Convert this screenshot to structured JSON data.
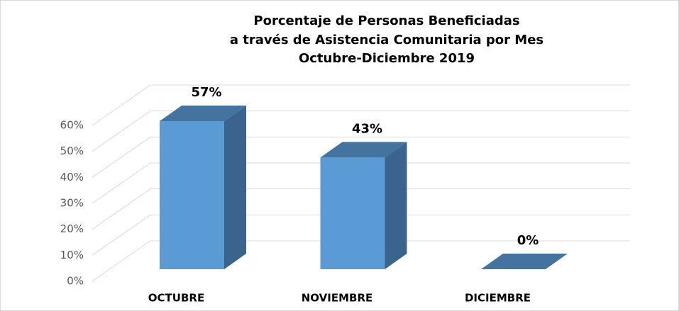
{
  "chart_data": {
    "type": "bar3d",
    "title": [
      "Porcentaje de Personas Beneficiadas",
      "a través de Asistencia Comunitaria por Mes",
      "Octubre-Diciembre  2019"
    ],
    "categories": [
      "OCTUBRE",
      "NOVIEMBRE",
      "DICIEMBRE"
    ],
    "values": [
      57,
      43,
      0
    ],
    "value_labels": [
      "57%",
      "43%",
      "0%"
    ],
    "color": "#5b9bd5",
    "ylim": [
      0,
      60
    ],
    "yticks": [
      {
        "value": 0,
        "label": "0%"
      },
      {
        "value": 10,
        "label": "10%"
      },
      {
        "value": 20,
        "label": "20%"
      },
      {
        "value": 30,
        "label": "30%"
      },
      {
        "value": 40,
        "label": "40%"
      },
      {
        "value": 50,
        "label": "50%"
      },
      {
        "value": 60,
        "label": "60%"
      }
    ],
    "grid": true
  }
}
